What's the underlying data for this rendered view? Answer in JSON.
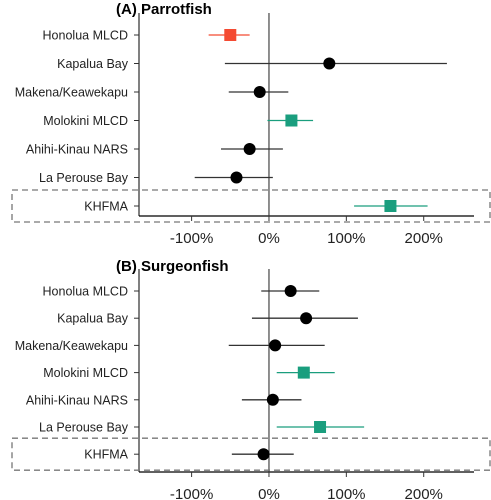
{
  "chart_data": [
    {
      "type": "forest",
      "title": "(A) Parrotfish",
      "categories": [
        "Honolua MLCD",
        "Kapalua Bay",
        "Makena/Keawekapu",
        "Molokini MLCD",
        "Ahihi-Kinau NARS",
        "La Perouse Bay",
        "KHFMA"
      ],
      "estimates": [
        -50,
        78,
        -12,
        29,
        -25,
        -42,
        157
      ],
      "ci_low": [
        -78,
        -57,
        -52,
        -2,
        -62,
        -96,
        110
      ],
      "ci_high": [
        -25,
        230,
        25,
        57,
        18,
        5,
        205
      ],
      "markers": [
        "square",
        "circle",
        "circle",
        "square",
        "circle",
        "circle",
        "square"
      ],
      "colors": [
        "#f44a32",
        "#000000",
        "#000000",
        "#1a9e7e",
        "#000000",
        "#000000",
        "#1a9e7e"
      ],
      "highlighted": "KHFMA",
      "xticks": [
        -100,
        0,
        100,
        200
      ],
      "xtick_labels": [
        "-100%",
        "0%",
        "100%",
        "200%"
      ],
      "xlim": [
        -168,
        265
      ],
      "reference_line": 0
    },
    {
      "type": "forest",
      "title": "(B) Surgeonfish",
      "categories": [
        "Honolua MLCD",
        "Kapalua Bay",
        "Makena/Keawekapu",
        "Molokini MLCD",
        "Ahihi-Kinau NARS",
        "La Perouse Bay",
        "KHFMA"
      ],
      "estimates": [
        28,
        48,
        8,
        45,
        5,
        66,
        -7
      ],
      "ci_low": [
        -10,
        -22,
        -52,
        10,
        -35,
        10,
        -48
      ],
      "ci_high": [
        65,
        115,
        72,
        85,
        42,
        123,
        32
      ],
      "markers": [
        "circle",
        "circle",
        "circle",
        "square",
        "circle",
        "square",
        "circle"
      ],
      "colors": [
        "#000000",
        "#000000",
        "#000000",
        "#1a9e7e",
        "#000000",
        "#1a9e7e",
        "#000000"
      ],
      "highlighted": "KHFMA",
      "xticks": [
        -100,
        0,
        100,
        200
      ],
      "xtick_labels": [
        "-100%",
        "0%",
        "100%",
        "200%"
      ],
      "xlim": [
        -168,
        265
      ],
      "reference_line": 0
    }
  ]
}
